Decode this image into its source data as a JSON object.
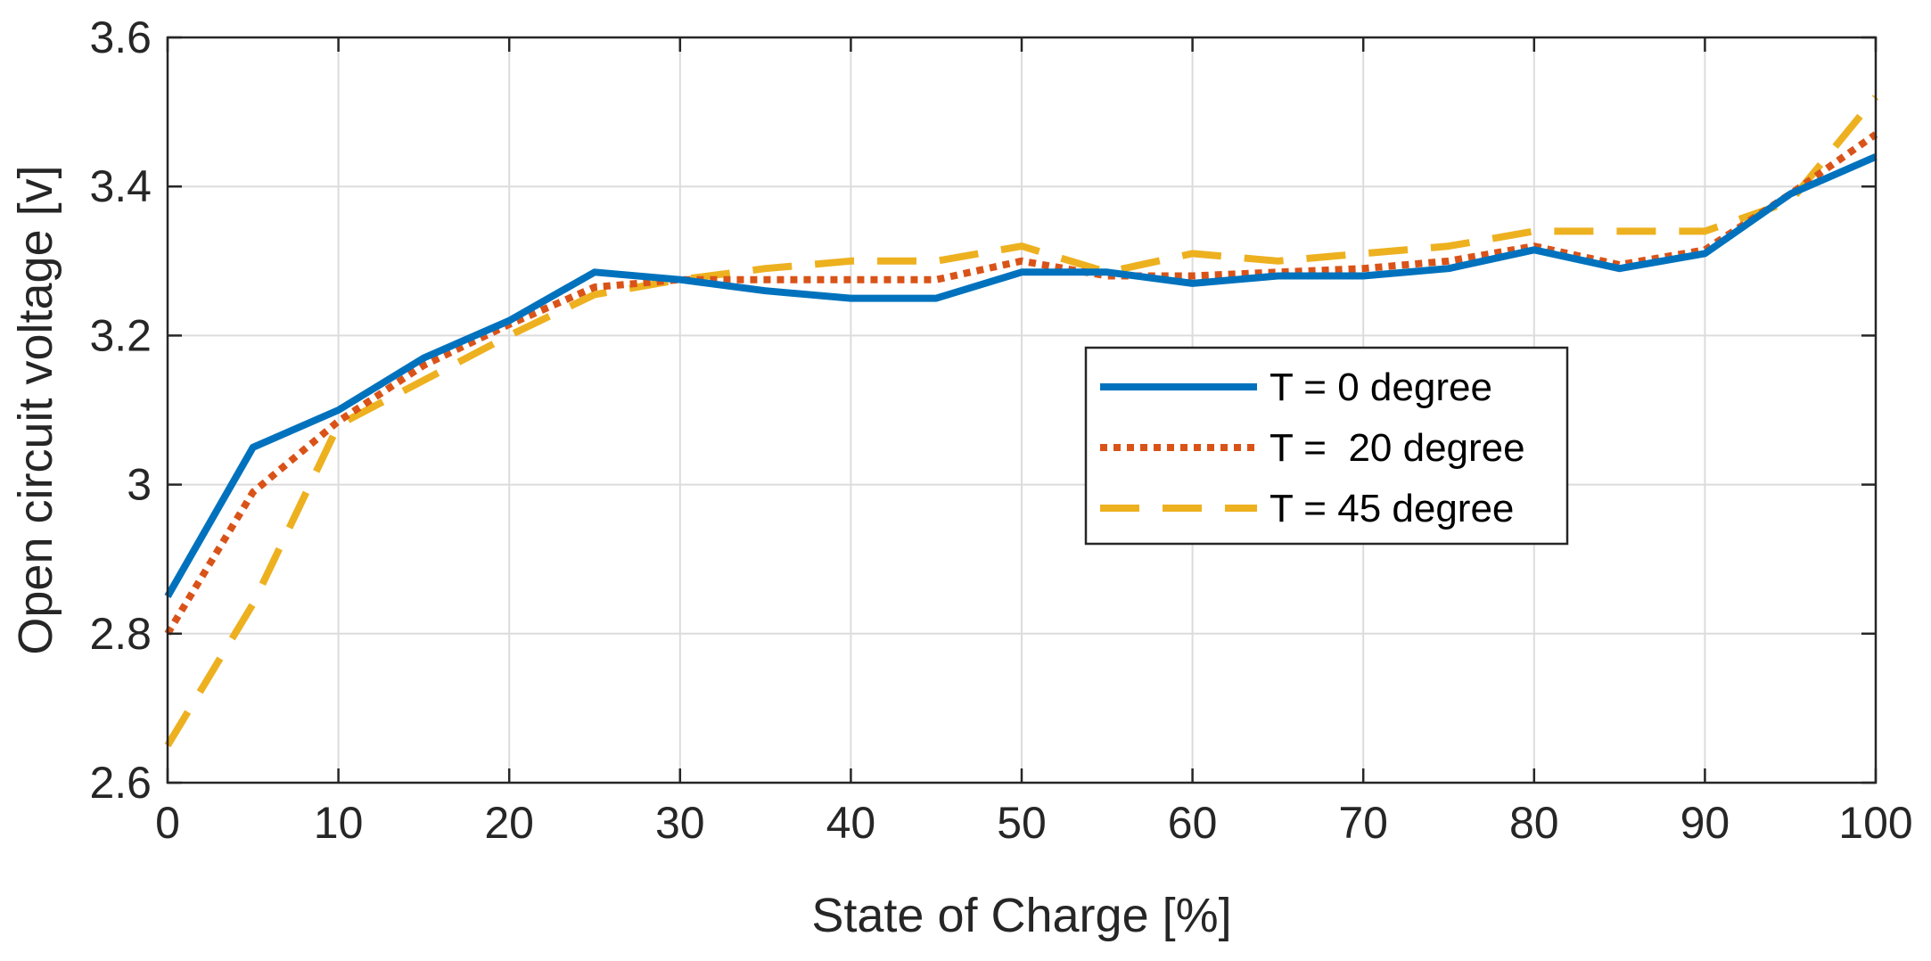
{
  "chart_data": {
    "type": "line",
    "title": "",
    "xlabel": "State of Charge [%]",
    "ylabel": "Open circuit voltage [v]",
    "xlim": [
      0,
      100
    ],
    "ylim": [
      2.6,
      3.6
    ],
    "xticks": [
      0,
      10,
      20,
      30,
      40,
      50,
      60,
      70,
      80,
      90,
      100
    ],
    "yticks": [
      2.6,
      2.8,
      3,
      3.2,
      3.4,
      3.6
    ],
    "xtick_labels": [
      "0",
      "10",
      "20",
      "30",
      "40",
      "50",
      "60",
      "70",
      "80",
      "90",
      "100"
    ],
    "ytick_labels": [
      "2.6",
      "2.8",
      "3",
      "3.2",
      "3.4",
      "3.6"
    ],
    "grid": true,
    "legend_position": "center-right",
    "x": [
      0,
      5,
      10,
      15,
      20,
      25,
      30,
      35,
      40,
      45,
      50,
      55,
      60,
      65,
      70,
      75,
      80,
      85,
      90,
      95,
      100
    ],
    "series": [
      {
        "name": "T = 0 degree",
        "color": "#0072BD",
        "style": "solid",
        "values": [
          2.85,
          3.05,
          3.1,
          3.17,
          3.22,
          3.285,
          3.275,
          3.26,
          3.25,
          3.25,
          3.285,
          3.285,
          3.27,
          3.28,
          3.28,
          3.29,
          3.315,
          3.29,
          3.31,
          3.39,
          3.44
        ]
      },
      {
        "name": "T =  20 degree",
        "color": "#D95319",
        "style": "dotted",
        "values": [
          2.8,
          2.99,
          3.085,
          3.16,
          3.215,
          3.265,
          3.275,
          3.275,
          3.275,
          3.275,
          3.3,
          3.28,
          3.28,
          3.285,
          3.29,
          3.3,
          3.32,
          3.295,
          3.315,
          3.39,
          3.47
        ]
      },
      {
        "name": "T = 45 degree",
        "color": "#EDB120",
        "style": "dashed",
        "values": [
          2.65,
          2.84,
          3.08,
          3.14,
          3.2,
          3.255,
          3.275,
          3.29,
          3.3,
          3.3,
          3.32,
          3.285,
          3.31,
          3.3,
          3.31,
          3.32,
          3.34,
          3.34,
          3.34,
          3.38,
          3.52
        ]
      }
    ]
  }
}
